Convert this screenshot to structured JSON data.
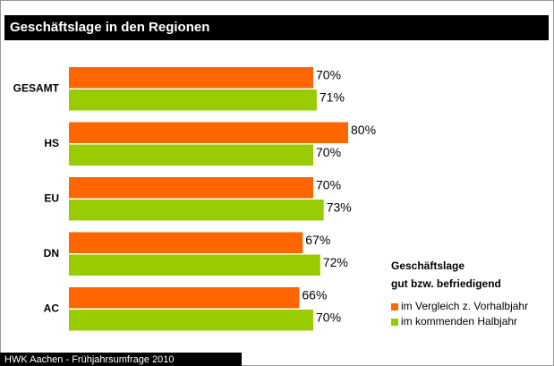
{
  "chart_data": {
    "type": "bar",
    "orientation": "horizontal",
    "title": "Geschäftslage in den Regionen",
    "categories": [
      "GESAMT",
      "HS",
      "EU",
      "DN",
      "AC"
    ],
    "legend_title": [
      "Geschäftslage",
      "gut bzw. befriedigend"
    ],
    "series": [
      {
        "name": "im Vergleich z. Vorhalbjahr",
        "color": "#ff6600",
        "values": [
          70,
          80,
          70,
          67,
          66
        ],
        "value_labels": [
          "70%",
          "80%",
          "70%",
          "67%",
          "66%"
        ]
      },
      {
        "name": "im kommenden Halbjahr",
        "color": "#99cc00",
        "values": [
          71,
          70,
          73,
          72,
          70
        ],
        "value_labels": [
          "71%",
          "70%",
          "73%",
          "72%",
          "70%"
        ]
      }
    ],
    "xlim": [
      0,
      100
    ],
    "source": "HWK Aachen - Frühjahrsumfrage 2010"
  }
}
